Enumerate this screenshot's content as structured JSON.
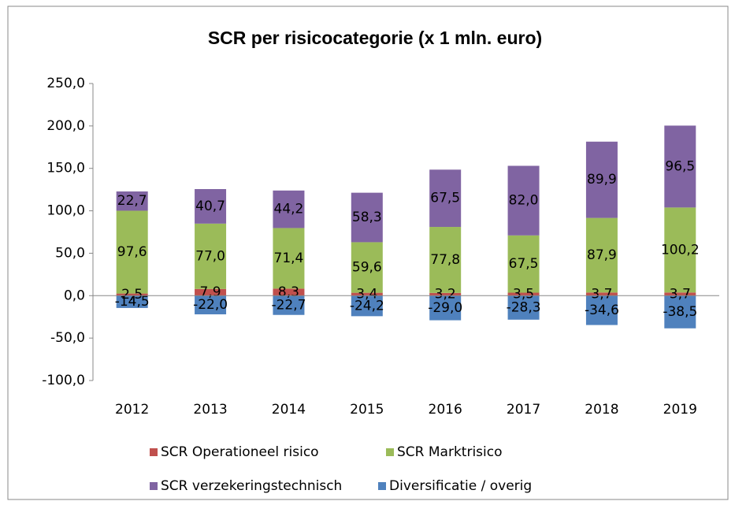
{
  "chart_data": {
    "type": "stacked_bar",
    "title": "SCR per risicocategorie (x 1 mln. euro)",
    "categories": [
      "2012",
      "2013",
      "2014",
      "2015",
      "2016",
      "2017",
      "2018",
      "2019"
    ],
    "series": [
      {
        "name": "SCR Operationeel risico",
        "color": "#c0504d",
        "values": [
          2.5,
          7.9,
          8.3,
          3.4,
          3.2,
          3.5,
          3.7,
          3.7
        ],
        "value_labels": [
          "2,5",
          "7,9",
          "8,3",
          "3,4",
          "3,2",
          "3,5",
          "3,7",
          "3,7"
        ]
      },
      {
        "name": "SCR Marktrisico",
        "color": "#9bbb59",
        "values": [
          97.6,
          77.0,
          71.4,
          59.6,
          77.8,
          67.5,
          87.9,
          100.2
        ],
        "value_labels": [
          "97,6",
          "77,0",
          "71,4",
          "59,6",
          "77,8",
          "67,5",
          "87,9",
          "100,2"
        ]
      },
      {
        "name": "SCR verzekeringstechnisch",
        "color": "#8064a2",
        "values": [
          22.7,
          40.7,
          44.2,
          58.3,
          67.5,
          82.0,
          89.9,
          96.5
        ],
        "value_labels": [
          "22,7",
          "40,7",
          "44,2",
          "58,3",
          "67,5",
          "82,0",
          "89,9",
          "96,5"
        ]
      },
      {
        "name": "Diversificatie / overig",
        "color": "#4f81bd",
        "values": [
          -14.5,
          -22.0,
          -22.7,
          -24.2,
          -29.0,
          -28.3,
          -34.6,
          -38.5
        ],
        "value_labels": [
          "-14,5",
          "-22,0",
          "-22,7",
          "-24,2",
          "-29,0",
          "-28,3",
          "-34,6",
          "-38,5"
        ]
      }
    ],
    "ylim": [
      -100,
      250
    ],
    "yticks": [
      {
        "value": -100,
        "label": "-100,0"
      },
      {
        "value": -50,
        "label": "-50,0"
      },
      {
        "value": 0,
        "label": "0,0"
      },
      {
        "value": 50,
        "label": "50,0"
      },
      {
        "value": 100,
        "label": "100,0"
      },
      {
        "value": 150,
        "label": "150,0"
      },
      {
        "value": 200,
        "label": "200,0"
      },
      {
        "value": 250,
        "label": "250,0"
      }
    ],
    "legend": "bottom"
  }
}
